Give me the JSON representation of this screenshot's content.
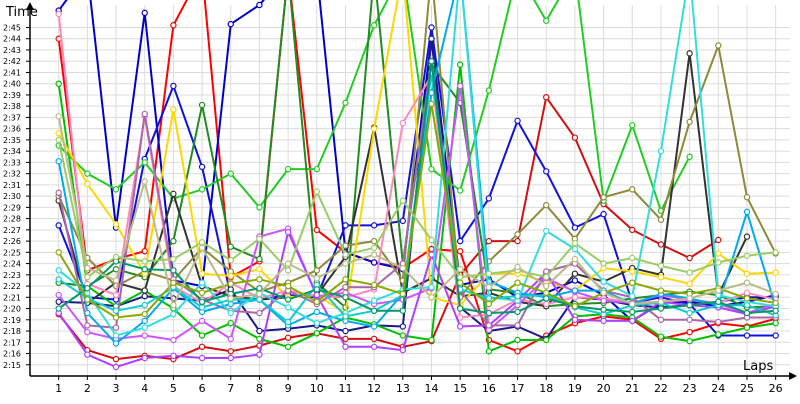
{
  "chart_data": {
    "type": "line",
    "title": "",
    "xlabel": "Laps",
    "ylabel": "Time",
    "y_unit": "m:ss",
    "grid": true,
    "legend": "none",
    "x": [
      1,
      2,
      3,
      4,
      5,
      6,
      7,
      8,
      9,
      10,
      11,
      12,
      13,
      14,
      15,
      16,
      17,
      18,
      19,
      20,
      21,
      22,
      23,
      24,
      25,
      26
    ],
    "xlim": [
      0,
      26.5
    ],
    "ylim": [
      "2:14",
      "2:47"
    ],
    "yticks": [
      "2:15",
      "2:16",
      "2:17",
      "2:18",
      "2:19",
      "2:20",
      "2:21",
      "2:22",
      "2:23",
      "2:24",
      "2:25",
      "2:26",
      "2:27",
      "2:28",
      "2:29",
      "2:30",
      "2:31",
      "2:32",
      "2:33",
      "2:34",
      "2:35",
      "2:36",
      "2:37",
      "2:38",
      "2:39",
      "2:40",
      "2:41",
      "2:42",
      "2:43",
      "2:44",
      "2:45"
    ],
    "series": [
      {
        "color": "#d01010",
        "values": [
          "2:19.5",
          "2:16.3",
          "2:15.5",
          "2:15.8",
          "2:15.5",
          "2:16.6",
          "2:16.2",
          "2:16.7",
          "2:17.4",
          "2:17.8",
          "2:17.3",
          "2:17.3",
          "2:16.6",
          "2:17.1",
          "2:23.0",
          "2:26.0",
          "2:26.0",
          "2:38.8",
          "2:35.2",
          "2:29.3",
          "2:27.0",
          "2:25.7",
          "2:24.5",
          "2:26.1",
          null,
          null
        ]
      },
      {
        "color": "#ff0000",
        "values": [
          "2:44.0",
          "2:23.4",
          "2:24.4",
          "2:25.1",
          "2:45.2",
          "2:50.0",
          "2:22.8",
          "2:24.2",
          "2:50.0",
          "2:27.0",
          "2:25.0",
          "2:24.1",
          "2:23.6",
          "2:25.3",
          "2:25.1",
          "2:17.2",
          "2:16.2",
          "2:17.6",
          "2:18.7",
          "2:19.3",
          "2:19.0",
          "2:17.3",
          "2:17.9",
          "2:18.7",
          "2:18.4",
          "2:19.1"
        ]
      },
      {
        "color": "#0000cc",
        "values": [
          "2:46.5",
          "2:50.0",
          "2:27.2",
          "2:46.3",
          "2:22.5",
          "2:22.0",
          "2:45.3",
          "2:47.0",
          "2:50.0",
          "2:50.0",
          "2:25.0",
          "2:24.1",
          "2:23.5",
          "2:44.0",
          "2:22.1",
          "2:22.6",
          "2:21.0",
          "2:21.4",
          "2:22.5",
          "2:21.2",
          "2:18.9",
          "2:20.5",
          "2:20.6",
          "2:20.2",
          "2:20.6",
          "2:21.2"
        ]
      },
      {
        "color": "#1010e0",
        "values": [
          "2:27.4",
          "2:21.0",
          "2:20.8",
          "2:33.3",
          "2:39.8",
          "2:32.6",
          "2:21.1",
          "2:20.8",
          "2:21.2",
          "2:21.0",
          "2:27.4",
          "2:27.4",
          "2:27.8",
          "2:45.0",
          "2:26.0",
          "2:29.8",
          "2:36.7",
          "2:32.2",
          "2:27.2",
          "2:28.4",
          "2:20.5",
          "2:21.0",
          "2:20.4",
          "2:17.6",
          "2:17.6",
          "2:17.6"
        ]
      },
      {
        "color": "#1a1a88",
        "values": [
          "2:20.6",
          "2:20.5",
          "2:20.2",
          "2:21.1",
          "2:20.9",
          "2:20.7",
          "2:21.7",
          "2:18.0",
          "2:18.2",
          "2:18.5",
          "2:18.0",
          "2:18.5",
          "2:18.4",
          "2:44.0",
          "2:20.1",
          "2:18.0",
          "2:18.4",
          "2:17.3",
          "2:21.0",
          "2:20.8",
          "2:20.3",
          "2:20.1",
          "2:20.3",
          "2:20.6",
          "2:21.0",
          "2:21.0"
        ]
      },
      {
        "color": "#00c000",
        "values": [
          "2:40.0",
          "2:22.0",
          "2:20.2",
          "2:21.6",
          "2:20.0",
          "2:17.6",
          "2:18.7",
          "2:17.3",
          "2:16.6",
          "2:17.8",
          "2:19.2",
          "2:18.6",
          "2:17.6",
          "2:17.2",
          "2:41.7",
          "2:16.2",
          "2:17.2",
          "2:17.2",
          "2:19.3",
          "2:19.5",
          "2:19.2",
          "2:17.5",
          "2:17.1",
          "2:17.7",
          "2:18.3",
          "2:18.7"
        ]
      },
      {
        "color": "#22cc22",
        "values": [
          "2:34.5",
          "2:32.0",
          "2:30.6",
          "2:33.0",
          "2:29.8",
          "2:30.6",
          "2:32.0",
          "2:29.0",
          "2:32.4",
          "2:32.4",
          "2:38.3",
          "2:45.2",
          "2:50.0",
          "2:32.4",
          "2:30.5",
          "2:39.4",
          "2:50.0",
          "2:45.6",
          "2:50.0",
          "2:29.6",
          "2:36.3",
          "2:28.7",
          "2:33.5",
          null,
          null,
          null
        ]
      },
      {
        "color": "#228b22",
        "values": [
          "2:22.3",
          "2:22.0",
          "2:23.5",
          "2:22.8",
          "2:26.0",
          "2:38.1",
          "2:25.5",
          "2:24.4",
          "2:50.0",
          "2:22.3",
          "2:20.1",
          "2:50.0",
          "2:24.0",
          "2:41.7",
          "2:38.3",
          "2:21.7",
          "2:21.4",
          "2:20.2",
          "2:20.4",
          "2:20.5",
          "2:20.9",
          "2:21.2",
          "2:21.5",
          "2:21.2",
          "2:20.1",
          "2:20.2"
        ]
      },
      {
        "color": "#333333",
        "values": [
          "2:29.6",
          "2:20.5",
          "2:22.3",
          "2:21.6",
          "2:30.2",
          "2:22.0",
          "2:21.1",
          "2:20.8",
          "2:21.0",
          "2:21.2",
          "2:24.6",
          "2:36.1",
          "2:21.4",
          "2:22.7",
          "2:21.1",
          "2:21.4",
          "2:20.6",
          "2:20.2",
          "2:23.1",
          "2:22.4",
          "2:23.6",
          "2:23.0",
          "2:42.7",
          "2:21.2",
          "2:26.4",
          null
        ]
      },
      {
        "color": "#8b8b3a",
        "values": [
          "2:30.0",
          "2:24.5",
          "2:22.0",
          "2:23.3",
          "2:22.5",
          "2:25.4",
          "2:23.3",
          "2:21.5",
          "2:22.3",
          "2:23.4",
          "2:25.6",
          "2:26.0",
          "2:22.5",
          "2:50.0",
          "2:21.0",
          "2:24.2",
          "2:26.6",
          "2:29.2",
          "2:26.2",
          "2:29.9",
          "2:30.6",
          "2:27.9",
          "2:36.6",
          "2:43.4",
          "2:29.9",
          "2:24.9"
        ]
      },
      {
        "color": "#ffd700",
        "values": [
          "2:35.6",
          "2:31.1",
          "2:27.5",
          "2:23.1",
          "2:37.7",
          "2:23.1",
          "2:22.9",
          "2:23.5",
          "2:21.0",
          "2:21.2",
          "2:19.6",
          "2:36.0",
          "2:50.0",
          "2:21.0",
          "2:20.3",
          "2:23.1",
          "2:23.1",
          "2:22.4",
          "2:21.6",
          "2:23.6",
          "2:23.3",
          "2:22.8",
          "2:22.2",
          "2:24.9",
          "2:23.1",
          "2:23.2"
        ]
      },
      {
        "color": "#ff88bb",
        "values": [
          "2:46.2",
          "2:22.2",
          "2:21.2",
          "2:37.1",
          "2:22.0",
          "2:20.5",
          "2:22.3",
          "2:20.9",
          "2:21.6",
          "2:21.1",
          "2:21.0",
          "2:21.7",
          "2:36.5",
          "2:40.7",
          "2:19.2",
          "2:19.5",
          "2:20.8",
          "2:20.4",
          "2:21.0",
          "2:20.9",
          "2:20.5",
          "2:20.6",
          "2:20.8",
          "2:20.5",
          "2:21.4",
          "2:20.8"
        ]
      },
      {
        "color": "#cc55ff",
        "values": [
          "2:21.2",
          "2:17.9",
          "2:17.3",
          "2:17.6",
          "2:17.2",
          "2:18.9",
          "2:17.3",
          "2:26.4",
          "2:27.1",
          "2:21.1",
          "2:21.4",
          "2:20.4",
          "2:20.8",
          "2:21.8",
          "2:39.8",
          "2:18.1",
          "2:20.3",
          "2:22.7",
          "2:21.5",
          "2:20.7",
          "2:20.5",
          "2:21.2",
          "2:20.8",
          "2:20.4",
          "2:19.6",
          "2:20.4"
        ]
      },
      {
        "color": "#b040ff",
        "values": [
          "2:19.6",
          "2:15.9",
          "2:14.8",
          "2:15.6",
          "2:15.8",
          "2:15.6",
          "2:15.6",
          "2:15.9",
          "2:26.8",
          "2:21.2",
          "2:16.6",
          "2:16.6",
          "2:16.3",
          "2:24.8",
          "2:18.4",
          "2:18.5",
          "2:20.7",
          "2:23.2",
          "2:19.0",
          "2:18.9",
          "2:18.9",
          "2:20.6",
          "2:20.3",
          "2:20.1",
          "2:19.5",
          "2:20.2"
        ]
      },
      {
        "color": "#aa66aa",
        "values": [
          "2:30.3",
          "2:18.5",
          "2:18.3",
          "2:37.3",
          "2:22.6",
          "2:20.8",
          "2:19.8",
          "2:19.6",
          "2:21.6",
          "2:20.4",
          "2:21.9",
          "2:21.9",
          "2:24.0",
          "2:42.0",
          "2:21.6",
          "2:18.5",
          "2:18.5",
          "2:23.3",
          "2:24.0",
          "2:21.6",
          "2:21.0",
          "2:19.0",
          "2:19.0",
          "2:18.8",
          "2:19.2",
          "2:19.2"
        ]
      },
      {
        "color": "#00aaee",
        "values": [
          "2:33.1",
          "2:19.6",
          "2:16.9",
          "2:18.9",
          "2:21.8",
          "2:19.7",
          "2:20.4",
          "2:20.8",
          "2:18.5",
          "2:19.7",
          "2:18.9",
          "2:18.4",
          "2:21.3",
          "2:39.2",
          "2:50.0",
          "2:22.4",
          "2:21.4",
          "2:21.0",
          "2:21.6",
          "2:21.6",
          "2:20.4",
          "2:21.3",
          "2:20.9",
          "2:20.3",
          "2:28.6",
          "2:20.1"
        ]
      },
      {
        "color": "#33dddd",
        "values": [
          "2:23.4",
          "2:21.4",
          "2:17.6",
          "2:18.3",
          "2:19.5",
          "2:22.3",
          "2:19.6",
          "2:21.4",
          "2:20.1",
          "2:18.7",
          "2:19.6",
          "2:20.7",
          "2:21.7",
          "2:21.9",
          "2:50.0",
          "2:21.0",
          "2:20.7",
          "2:26.9",
          "2:25.3",
          "2:22.4",
          "2:21.1",
          "2:34.0",
          "2:50.0",
          "2:21.2",
          "2:20.6",
          "2:20.2"
        ]
      },
      {
        "color": "#11cccc",
        "values": [
          "2:22.6",
          "2:20.9",
          "2:19.8",
          "2:20.3",
          "2:21.9",
          "2:20.1",
          "2:20.8",
          "2:20.8",
          "2:18.8",
          "2:22.1",
          "2:19.3",
          "2:19.8",
          "2:21.2",
          "2:41.0",
          "2:21.7",
          "2:20.9",
          "2:21.1",
          "2:21.2",
          "2:20.1",
          "2:19.5",
          "2:20.3",
          "2:20.5",
          "2:19.6",
          "2:20.3",
          "2:20.3",
          "2:19.4"
        ]
      },
      {
        "color": "#009966",
        "values": [
          "2:20.0",
          "2:21.8",
          "2:24.2",
          "2:23.5",
          "2:23.4",
          "2:20.6",
          "2:21.3",
          "2:21.8",
          "2:20.8",
          "2:21.7",
          "2:21.0",
          "2:19.8",
          "2:19.8",
          "2:42.0",
          "2:20.0",
          "2:19.6",
          "2:19.7",
          "2:20.9",
          "2:20.2",
          "2:19.9",
          "2:19.7",
          "2:20.0",
          "2:20.3",
          "2:20.6",
          "2:19.6",
          "2:19.8"
        ]
      },
      {
        "color": "#88aa00",
        "values": [
          "2:25.0",
          "2:20.8",
          "2:19.2",
          "2:19.5",
          "2:22.3",
          "2:21.4",
          "2:22.2",
          "2:22.6",
          "2:22.0",
          "2:20.6",
          "2:22.6",
          "2:22.1",
          "2:21.3",
          "2:38.2",
          "2:22.3",
          "2:20.4",
          "2:22.3",
          "2:21.4",
          "2:20.2",
          "2:21.4",
          "2:22.3",
          "2:21.6",
          "2:21.3",
          "2:21.8",
          "2:20.9",
          "2:20.5"
        ]
      },
      {
        "color": "#99cc66",
        "values": [
          "2:35.0",
          "2:22.8",
          "2:24.6",
          "2:24.2",
          "2:24.4",
          "2:25.9",
          "2:24.3",
          "2:26.2",
          "2:23.4",
          "2:30.4",
          "2:24.8",
          "2:25.4",
          "2:29.6",
          "2:26.1",
          "2:22.8",
          "2:23.1",
          "2:23.4",
          "2:22.8",
          "2:25.8",
          "2:24.0",
          "2:24.5",
          "2:23.8",
          "2:23.2",
          "2:24.1",
          "2:24.7",
          "2:25.0"
        ]
      },
      {
        "color": "#bbbb88",
        "values": [
          "2:37.1",
          "2:23.6",
          "2:22.5",
          "2:31.3",
          "2:20.3",
          "2:25.4",
          "2:20.9",
          "2:21.3",
          "2:24.0",
          "2:22.7",
          "2:24.0",
          "2:24.8",
          "2:23.6",
          "2:21.0",
          "2:23.5",
          "2:21.9",
          "2:23.7",
          "2:22.0",
          "2:24.4",
          "2:21.4",
          "2:20.4",
          "2:20.6",
          "2:20.9",
          "2:21.6",
          "2:22.3",
          "2:21.3"
        ]
      }
    ]
  }
}
